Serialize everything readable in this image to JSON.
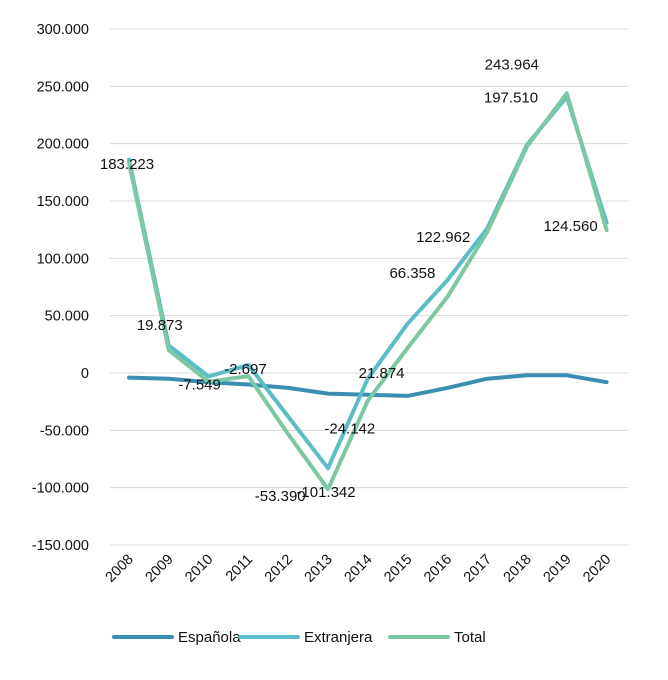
{
  "chart_data": {
    "type": "line",
    "title": "",
    "xlabel": "",
    "ylabel": "",
    "categories": [
      "2008",
      "2009",
      "2010",
      "2011",
      "2012",
      "2013",
      "2014",
      "2015",
      "2016",
      "2017",
      "2018",
      "2019",
      "2020"
    ],
    "ylim": [
      -150000,
      300000
    ],
    "yticks": [
      300000,
      250000,
      200000,
      150000,
      100000,
      50000,
      0,
      -50000,
      -100000,
      -150000
    ],
    "ytick_labels": [
      "300.000",
      "250.000",
      "200.000",
      "150.000",
      "100.000",
      "50.000",
      "0",
      "-50.000",
      "-100.000",
      "-150.000"
    ],
    "grid": true,
    "legend_position": "bottom",
    "series": [
      {
        "name": "Española",
        "color": "#3a8fb0",
        "values": [
          -4000,
          -5000,
          -8000,
          -10000,
          -13000,
          -18000,
          -19000,
          -20000,
          -13000,
          -5000,
          -2000,
          -2000,
          -8000
        ]
      },
      {
        "name": "Extranjera",
        "color": "#5bbdc5",
        "values": [
          186000,
          24000,
          -3000,
          7000,
          -38000,
          -83000,
          -5000,
          43000,
          81000,
          126000,
          199000,
          241000,
          131000
        ]
      },
      {
        "name": "Total",
        "color": "#7cc8a2",
        "values": [
          183223,
          19873,
          -7549,
          -2697,
          -53390,
          -101342,
          -24142,
          21874,
          66358,
          122962,
          197510,
          243964,
          124560
        ]
      }
    ],
    "data_labels": [
      {
        "text": "183.223",
        "series": "Total",
        "index": 0
      },
      {
        "text": "19.873",
        "series": "Total",
        "index": 1
      },
      {
        "text": "-7.549",
        "series": "Total",
        "index": 2
      },
      {
        "text": "-2.697",
        "series": "Total",
        "index": 3
      },
      {
        "text": "-53.390",
        "series": "Total",
        "index": 4
      },
      {
        "text": "-101.342",
        "series": "Total",
        "index": 5
      },
      {
        "text": "-24.142",
        "series": "Total",
        "index": 6
      },
      {
        "text": "21.874",
        "series": "Total",
        "index": 7
      },
      {
        "text": "66.358",
        "series": "Total",
        "index": 8
      },
      {
        "text": "122.962",
        "series": "Total",
        "index": 9
      },
      {
        "text": "197.510",
        "series": "Total",
        "index": 10
      },
      {
        "text": "243.964",
        "series": "Total",
        "index": 11
      },
      {
        "text": "124.560",
        "series": "Total",
        "index": 12
      }
    ]
  }
}
